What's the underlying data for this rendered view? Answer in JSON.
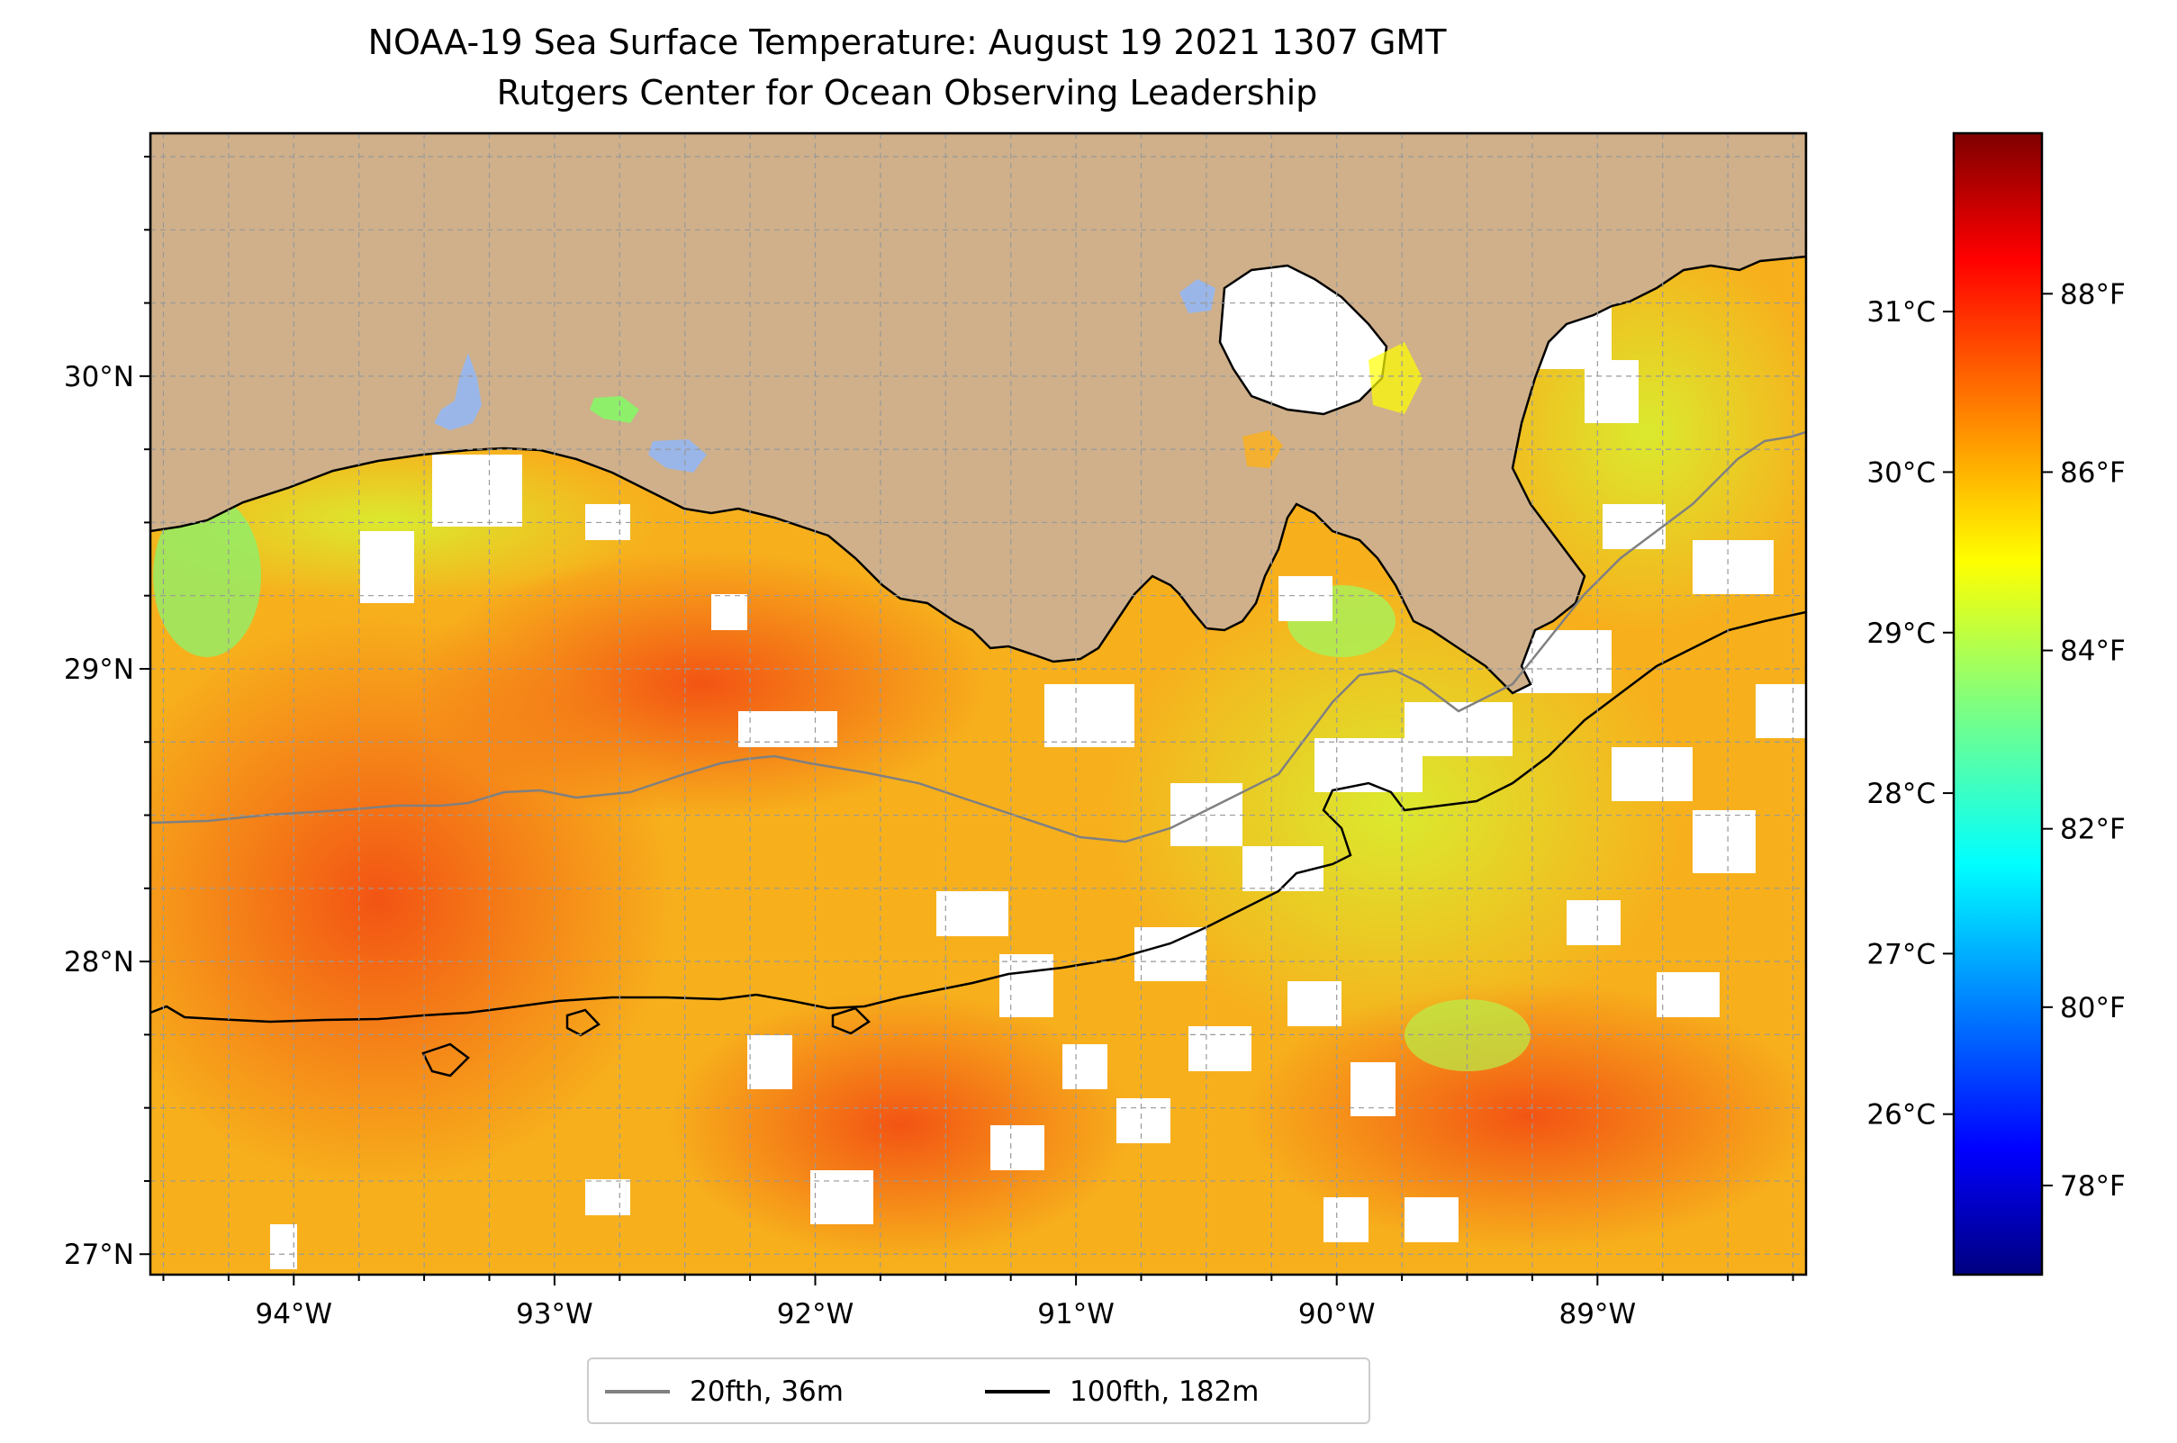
{
  "title": "NOAA-19 Sea Surface Temperature: August 19 2021 1307 GMT",
  "subtitle": "Rutgers Center for Ocean Observing Leadership",
  "map": {
    "extent": {
      "lon_min": -94.55,
      "lon_max": -88.2,
      "lat_min": 26.93,
      "lat_max": 30.83
    },
    "x_ticks": [
      {
        "value": -94,
        "label": "94°W"
      },
      {
        "value": -93,
        "label": "93°W"
      },
      {
        "value": -92,
        "label": "92°W"
      },
      {
        "value": -91,
        "label": "91°W"
      },
      {
        "value": -90,
        "label": "90°W"
      },
      {
        "value": -89,
        "label": "89°W"
      }
    ],
    "y_ticks": [
      {
        "value": 27,
        "label": "27°N"
      },
      {
        "value": 28,
        "label": "28°N"
      },
      {
        "value": 29,
        "label": "29°N"
      },
      {
        "value": 30,
        "label": "30°N"
      }
    ],
    "gridlines": true,
    "land_color": "#cfb08a",
    "lake_color": "#9ab6e8",
    "no_data_color": "#ffffff"
  },
  "colorbar": {
    "colormap": "jet",
    "range_f": [
      77.0,
      89.8
    ],
    "fahrenheit_ticks": [
      {
        "value": 78,
        "label": "78°F"
      },
      {
        "value": 80,
        "label": "80°F"
      },
      {
        "value": 82,
        "label": "82°F"
      },
      {
        "value": 84,
        "label": "84°F"
      },
      {
        "value": 86,
        "label": "86°F"
      },
      {
        "value": 88,
        "label": "88°F"
      }
    ],
    "celsius_ticks": [
      {
        "value": 26,
        "label": "26°C"
      },
      {
        "value": 27,
        "label": "27°C"
      },
      {
        "value": 28,
        "label": "28°C"
      },
      {
        "value": 29,
        "label": "29°C"
      },
      {
        "value": 30,
        "label": "30°C"
      },
      {
        "value": 31,
        "label": "31°C"
      }
    ]
  },
  "legend": {
    "entries": [
      {
        "label": "20fth, 36m",
        "color": "#808080"
      },
      {
        "label": "100fth, 182m",
        "color": "#000000"
      }
    ]
  }
}
